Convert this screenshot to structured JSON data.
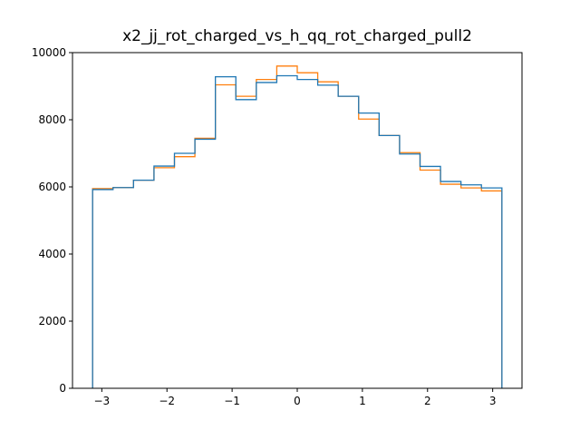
{
  "chart_data": {
    "type": "histogram-step",
    "title": "x2_jj_rot_charged_vs_h_qq_rot_charged_pull2",
    "xlabel": "",
    "ylabel": "",
    "xlim": [
      -3.45,
      3.45
    ],
    "ylim": [
      0,
      10000
    ],
    "xticks": [
      -3,
      -2,
      -1,
      0,
      1,
      2,
      3
    ],
    "xtick_labels": [
      "−3",
      "−2",
      "−1",
      "0",
      "1",
      "2",
      "3"
    ],
    "yticks": [
      0,
      2000,
      4000,
      6000,
      8000,
      10000
    ],
    "ytick_labels": [
      "0",
      "2000",
      "4000",
      "6000",
      "8000",
      "10000"
    ],
    "grid": false,
    "bin_edges": [
      -3.1416,
      -2.8274,
      -2.5133,
      -2.1991,
      -1.885,
      -1.5708,
      -1.2566,
      -0.9425,
      -0.6283,
      -0.3142,
      0.0,
      0.3142,
      0.6283,
      0.9425,
      1.2566,
      1.5708,
      1.885,
      2.1991,
      2.5133,
      2.8274,
      3.1416
    ],
    "series": [
      {
        "color": "#ff7f0e",
        "values": [
          5950,
          5980,
          6200,
          6570,
          6900,
          7450,
          9040,
          8700,
          9200,
          9600,
          9400,
          9130,
          8700,
          8020,
          7530,
          7020,
          6500,
          6080,
          5970,
          5880
        ]
      },
      {
        "color": "#1f77b4",
        "values": [
          5920,
          5980,
          6200,
          6620,
          7000,
          7420,
          9280,
          8600,
          9110,
          9310,
          9200,
          9030,
          8700,
          8200,
          7530,
          6980,
          6610,
          6160,
          6060,
          5970
        ]
      }
    ]
  }
}
